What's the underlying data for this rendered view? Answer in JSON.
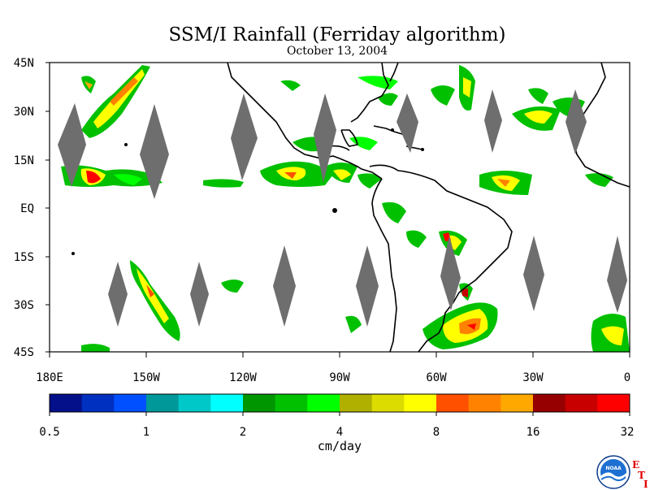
{
  "title": "SSM/I Rainfall (Ferriday algorithm)",
  "date": "October 13, 2004",
  "lat_labels": [
    "45N",
    "30N",
    "15N",
    "EQ",
    "15S",
    "30S",
    "45S"
  ],
  "lon_labels": [
    "180E",
    "150W",
    "120W",
    "90W",
    "60W",
    "30W",
    "0"
  ],
  "colorbar": {
    "colors": [
      "#03108a",
      "#0030c0",
      "#0050ff",
      "#009898",
      "#00c8c8",
      "#00ffff",
      "#009600",
      "#00c000",
      "#00ff00",
      "#b0b000",
      "#dcdc00",
      "#ffff00",
      "#ff5000",
      "#ff8200",
      "#ffa800",
      "#960000",
      "#c80000",
      "#ff0000"
    ],
    "tick_labels": [
      "0.5",
      "1",
      "2",
      "4",
      "8",
      "16",
      "32"
    ],
    "unit": "cm/day"
  },
  "logo": {
    "text": "NOAA",
    "side_letters": [
      "E",
      "T",
      "I"
    ]
  }
}
